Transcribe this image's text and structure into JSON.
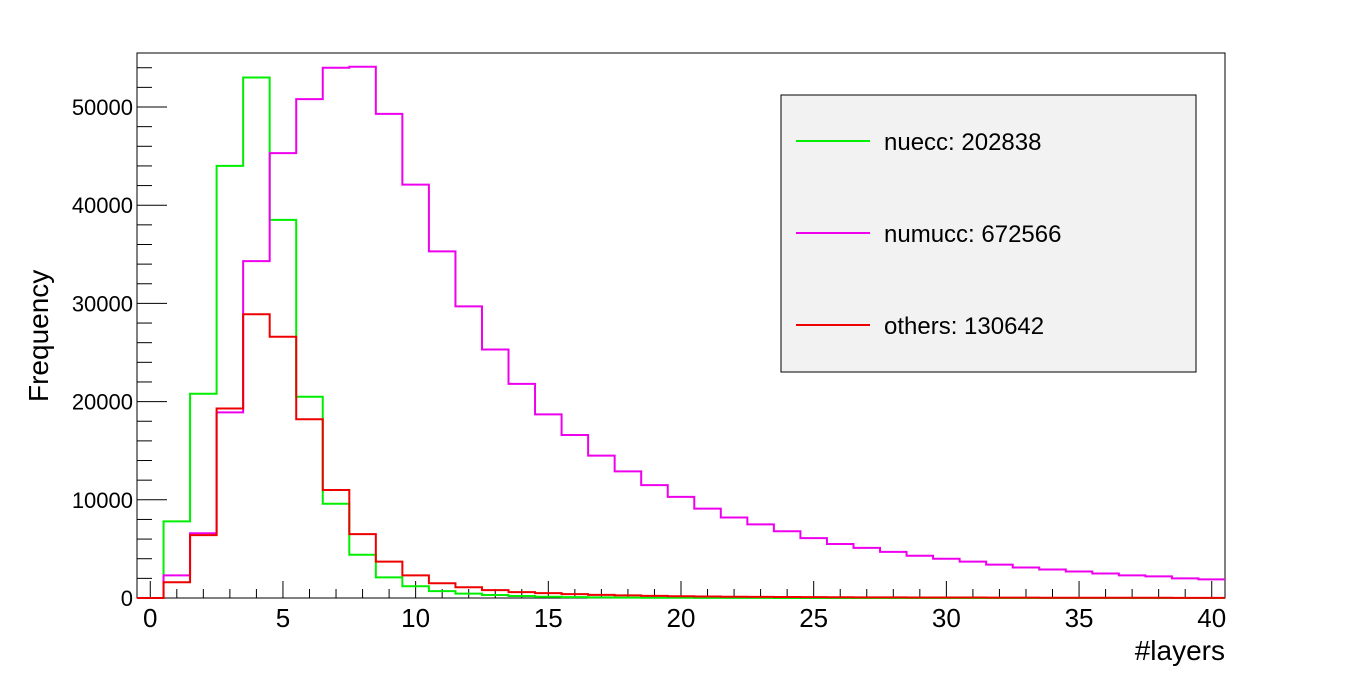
{
  "chart_data": {
    "type": "histogram",
    "title": "",
    "xlabel": "#layers",
    "ylabel": "Frequency",
    "xlim": [
      -0.5,
      40.5
    ],
    "ylim": [
      0,
      55500
    ],
    "x_ticks": [
      "0",
      "5",
      "10",
      "15",
      "20",
      "25",
      "30",
      "35",
      "40"
    ],
    "y_ticks": [
      "0",
      "10000",
      "20000",
      "30000",
      "40000",
      "50000"
    ],
    "bin_edges_start": -0.5,
    "bin_width": 1,
    "grid": false,
    "legend_placement": "top-right",
    "series": [
      {
        "name": "nuecc: 202838",
        "color": "#00ee00",
        "values": [
          0,
          7800,
          20800,
          44000,
          53000,
          38500,
          20500,
          9600,
          4400,
          2100,
          1200,
          700,
          450,
          300,
          200,
          130,
          90,
          60,
          40,
          30,
          20,
          15,
          10,
          8,
          6,
          5,
          4,
          3,
          3,
          2,
          2,
          1,
          1,
          1,
          1,
          1,
          0,
          0,
          0,
          0,
          0
        ]
      },
      {
        "name": "numucc: 672566",
        "color": "#ee00ee",
        "values": [
          0,
          2300,
          6600,
          18900,
          34300,
          45300,
          50800,
          54000,
          54100,
          49300,
          42100,
          35300,
          29700,
          25300,
          21800,
          18700,
          16600,
          14500,
          12900,
          11500,
          10300,
          9100,
          8200,
          7500,
          6800,
          6100,
          5500,
          5100,
          4700,
          4300,
          4000,
          3700,
          3400,
          3100,
          2900,
          2700,
          2500,
          2300,
          2200,
          2000,
          1900
        ]
      },
      {
        "name": "others: 130642",
        "color": "#ee0000",
        "values": [
          0,
          1600,
          6400,
          19300,
          28900,
          26600,
          18200,
          11000,
          6500,
          3700,
          2300,
          1500,
          1100,
          800,
          600,
          500,
          400,
          320,
          270,
          220,
          180,
          150,
          130,
          110,
          100,
          90,
          80,
          70,
          60,
          55,
          50,
          45,
          40,
          35,
          30,
          28,
          25,
          22,
          20,
          18,
          16
        ]
      }
    ]
  }
}
